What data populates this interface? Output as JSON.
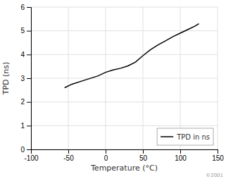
{
  "chart_data": {
    "type": "line",
    "xlabel": "Temperature (°C)",
    "ylabel": "TPD (ns)",
    "x": [
      -55,
      -45,
      -30,
      -10,
      0,
      10,
      20,
      30,
      40,
      50,
      60,
      70,
      80,
      90,
      100,
      110,
      120,
      125
    ],
    "series": [
      {
        "name": "TPD in ns",
        "color": "#000000",
        "values": [
          2.6,
          2.75,
          2.9,
          3.1,
          3.25,
          3.35,
          3.42,
          3.52,
          3.68,
          3.95,
          4.2,
          4.4,
          4.57,
          4.75,
          4.9,
          5.05,
          5.2,
          5.3
        ]
      }
    ],
    "xlim": [
      -100,
      150
    ],
    "ylim": [
      0,
      6
    ],
    "xticks": [
      -100,
      -50,
      0,
      50,
      100,
      150
    ],
    "yticks": [
      0,
      1,
      2,
      3,
      4,
      5,
      6
    ],
    "grid": true,
    "legend": "lower right",
    "annotations": [
      "©2001"
    ]
  }
}
